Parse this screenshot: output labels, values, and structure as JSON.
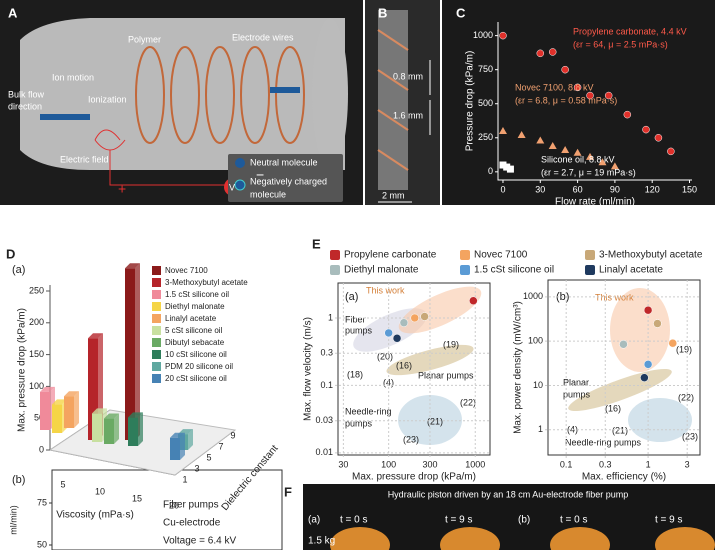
{
  "panel_a": {
    "label": "A",
    "texts": [
      "Polymer",
      "Electrode wires",
      "Ion motion",
      "Ionization",
      "Bulk flow",
      "direction",
      "Electric field",
      "V",
      "+",
      "−",
      "Neutral molecule",
      "Negatively charged",
      "molecule"
    ]
  },
  "panel_b": {
    "label": "B",
    "texts": [
      "0.8 mm",
      "1.6 mm",
      "2 mm"
    ]
  },
  "panel_d": {
    "label": "D",
    "sub_a": "(a)",
    "sub_b": "(b)",
    "b_yticks": [
      50,
      75
    ],
    "b_ylabel": "ml/min)",
    "b_texts": [
      "Fiber pumps",
      "Cu-electrode",
      "Voltage = 6.4 kV"
    ]
  },
  "panel_e": {
    "label": "E",
    "sub_a": "(a)",
    "sub_b": "(b)",
    "a_notes": [
      "This work",
      "Fiber",
      "pumps",
      "(20)",
      "(18)",
      "(19)",
      "(16)",
      "(4)",
      "Planar pumps",
      "Needle-ring",
      "pumps",
      "(22)",
      "(21)",
      "(23)"
    ],
    "b_notes": [
      "This work",
      "(19)",
      "Planar",
      "pumps",
      "(4)",
      "(16)",
      "(22)",
      "(21)",
      "Needle-ring pumps",
      "(23)"
    ]
  },
  "panel_f": {
    "label": "F",
    "title": "Hydraulic piston driven by an 18 cm Au-electrode fiber pump",
    "texts": [
      "(a)",
      "t = 0 s",
      "t = 9 s",
      "(b)",
      "t = 0 s",
      "t = 9 s",
      "1.5 kg"
    ]
  },
  "chart_data": [
    {
      "type": "scatter",
      "panel": "C",
      "xlabel": "Flow rate (ml/min)",
      "ylabel": "Pressure drop (kPa/m)",
      "xlim": [
        -4,
        152
      ],
      "ylim": [
        -60,
        1100
      ],
      "xticks": [
        0,
        30,
        60,
        90,
        120,
        150
      ],
      "yticks": [
        0,
        250,
        500,
        750,
        1000
      ],
      "annotations": [
        "Propylene carbonate, 4.4 kV",
        "(εr = 64, μ = 2.5 mPa·s)",
        "Novec 7100, 8.8 kV",
        "(εr = 6.8, μ = 0.58 mPa·s)",
        "Silicone oil, 8.8 kV",
        "(εr = 2.7, μ = 19 mPa·s)"
      ],
      "series": [
        {
          "color": "#e0302a",
          "marker": "circle",
          "x": [
            0,
            30,
            40,
            50,
            60,
            70,
            85,
            100,
            115,
            125,
            135
          ],
          "values": [
            1000,
            870,
            880,
            750,
            620,
            560,
            560,
            420,
            310,
            250,
            150
          ]
        },
        {
          "color": "#f0a070",
          "marker": "triangle",
          "x": [
            0,
            15,
            30,
            40,
            50,
            60,
            70,
            80,
            90
          ],
          "values": [
            300,
            270,
            230,
            190,
            160,
            140,
            110,
            70,
            40
          ]
        },
        {
          "color": "#ffffff",
          "marker": "square",
          "x": [
            0,
            3,
            6
          ],
          "values": [
            50,
            35,
            20
          ]
        }
      ]
    },
    {
      "type": "bar3d",
      "ylabel": "Max. pressure drop (kPa/m)",
      "xlabel": "Viscosity (mPa·s)",
      "zlabel": "Dielectric constant",
      "ylim": [
        0,
        250
      ],
      "yticks": [
        0,
        50,
        100,
        150,
        200,
        250
      ],
      "xticks": [
        5,
        10,
        15,
        20
      ],
      "zticks": [
        1,
        3,
        5,
        7,
        9
      ],
      "categories": [
        "Novec 7100",
        "3-Methoxybutyl acetate",
        "1.5 cSt silicone oil",
        "Diethyl malonate",
        "Linalyl acetate",
        "5 cSt silicone oil",
        "Dibutyl sebacate",
        "10 cSt silicone oil",
        "PDM 20 silicone oil",
        "20 cSt silicone oil"
      ],
      "values": [
        270,
        160,
        60,
        45,
        50,
        45,
        40,
        45,
        25,
        35
      ],
      "colors": [
        "#8b1a1a",
        "#b5242a",
        "#f08a9a",
        "#f5d547",
        "#f4a460",
        "#c8e0a0",
        "#6aaa64",
        "#2e7d5b",
        "#5fa8a0",
        "#4682b4"
      ]
    },
    {
      "type": "scatter",
      "xlog": true,
      "ylog": true,
      "xlabel": "Max. pressure drop (kPa/m)",
      "ylabel": "Max. flow velocity (m/s)",
      "xlim": [
        26,
        1480
      ],
      "ylim": [
        0.0093,
        3.3
      ],
      "xticks": [
        30,
        100,
        300,
        1000
      ],
      "yticks": [
        0.01,
        0.03,
        0.1,
        0.3,
        1
      ],
      "grid": true,
      "series": [
        {
          "name": "Propylene carbonate",
          "color": "#c0282a",
          "x": [
            950
          ],
          "values": [
            1.8
          ]
        },
        {
          "name": "Novec 7100",
          "color": "#f4a460",
          "x": [
            200
          ],
          "values": [
            1.0
          ]
        },
        {
          "name": "3-Methoxybutyl acetate",
          "color": "#c8a878",
          "x": [
            260
          ],
          "values": [
            1.05
          ]
        },
        {
          "name": "Diethyl malonate",
          "color": "#a8bcbc",
          "x": [
            150
          ],
          "values": [
            0.85
          ]
        },
        {
          "name": "1.5 cSt silicone oil",
          "color": "#5b9bd5",
          "x": [
            100
          ],
          "values": [
            0.6
          ]
        },
        {
          "name": "Linalyl acetate",
          "color": "#1f3a5f",
          "x": [
            125
          ],
          "values": [
            0.5
          ]
        }
      ]
    },
    {
      "type": "scatter",
      "xlog": true,
      "ylog": true,
      "xlabel": "Max. efficiency (%)",
      "ylabel": "Max. power density (mW/cm³)",
      "xlim": [
        0.06,
        4.3
      ],
      "ylim": [
        0.27,
        2400
      ],
      "xticks": [
        0.1,
        0.3,
        1,
        3
      ],
      "yticks": [
        1,
        10,
        100,
        1000
      ],
      "grid": true,
      "series": [
        {
          "color": "#c0282a",
          "x": [
            1.0
          ],
          "values": [
            500
          ]
        },
        {
          "color": "#f4a460",
          "x": [
            2.0
          ],
          "values": [
            90
          ]
        },
        {
          "color": "#c8a878",
          "x": [
            1.3
          ],
          "values": [
            250
          ]
        },
        {
          "color": "#a8bcbc",
          "x": [
            0.5
          ],
          "values": [
            85
          ]
        },
        {
          "color": "#5b9bd5",
          "x": [
            1.0
          ],
          "values": [
            30
          ]
        },
        {
          "color": "#1f3a5f",
          "x": [
            0.9
          ],
          "values": [
            15
          ]
        }
      ]
    }
  ]
}
